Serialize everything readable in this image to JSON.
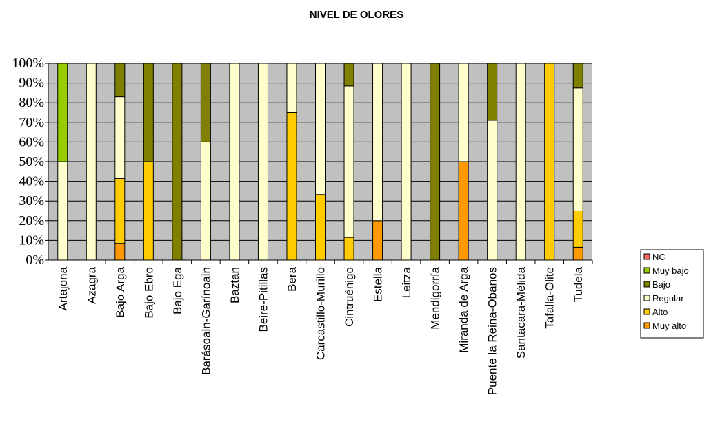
{
  "chart_data": {
    "type": "bar",
    "stacked": true,
    "percent": true,
    "title": "NIVEL DE OLORES",
    "categories": [
      "Artajona",
      "Azagra",
      "Bajo Arga",
      "Bajo Ebro",
      "Bajo Ega",
      "Barásoain-Garínoain",
      "Baztan",
      "Beire-Pitillas",
      "Bera",
      "Carcastillo-Murillo",
      "Cintruénigo",
      "Estella",
      "Leitza",
      "Mendigorría",
      "Miranda de Arga",
      "Puente la Reina-Obanos",
      "Santacara-Mélida",
      "Tafalla-Olite",
      "Tudela"
    ],
    "series": [
      {
        "name": "Muy alto",
        "color": "#FF9900",
        "values": [
          0,
          0,
          8.5,
          0,
          0,
          0,
          0,
          0,
          0,
          0,
          0,
          20,
          0,
          0,
          50,
          0,
          0,
          0,
          6.5
        ]
      },
      {
        "name": "Alto",
        "color": "#FFCC00",
        "values": [
          0,
          0,
          33,
          50,
          0,
          0,
          0,
          0,
          75,
          33.3,
          11.5,
          0,
          0,
          0,
          0,
          0,
          0,
          100,
          18.5
        ]
      },
      {
        "name": "Regular",
        "color": "#FFFFCC",
        "values": [
          50,
          100,
          41.5,
          0,
          0,
          60,
          100,
          100,
          25,
          66.7,
          77,
          80,
          100,
          0,
          50,
          71,
          100,
          0,
          62.5
        ]
      },
      {
        "name": "Bajo",
        "color": "#808000",
        "values": [
          0,
          0,
          17,
          50,
          100,
          40,
          0,
          0,
          0,
          0,
          11.5,
          0,
          0,
          100,
          0,
          29,
          0,
          0,
          12.5
        ]
      },
      {
        "name": "Muy bajo",
        "color": "#99CC00",
        "values": [
          50,
          0,
          0,
          0,
          0,
          0,
          0,
          0,
          0,
          0,
          0,
          0,
          0,
          0,
          0,
          0,
          0,
          0,
          0
        ]
      },
      {
        "name": "NC",
        "color": "#FF6666",
        "values": [
          0,
          0,
          0,
          0,
          0,
          0,
          0,
          0,
          0,
          0,
          0,
          0,
          0,
          0,
          0,
          0,
          0,
          0,
          0
        ]
      }
    ],
    "legend_order": [
      "NC",
      "Muy bajo",
      "Bajo",
      "Regular",
      "Alto",
      "Muy alto"
    ],
    "yticks": [
      "0%",
      "10%",
      "20%",
      "30%",
      "40%",
      "50%",
      "60%",
      "70%",
      "80%",
      "90%",
      "100%"
    ],
    "ylim": [
      0,
      100
    ],
    "grid": true,
    "legend_position": "right",
    "plot_background": "#C0C0C0"
  }
}
